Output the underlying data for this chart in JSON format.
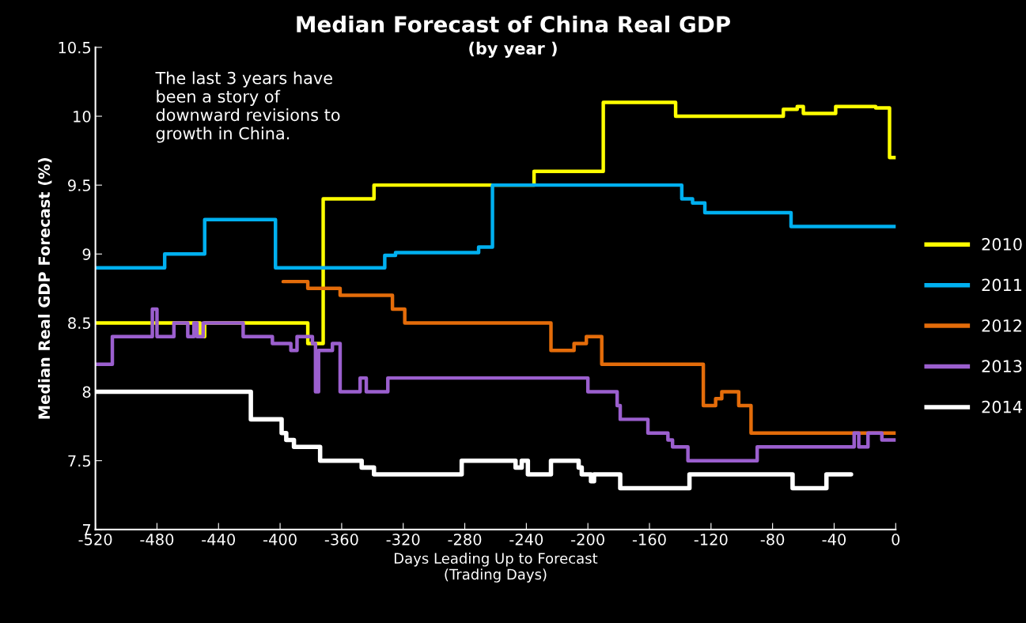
{
  "chart_data": {
    "type": "step",
    "title": "Median Forecast of China Real GDP",
    "subtitle": "(by year )",
    "xlabel": "Days Leading Up to Forecast\n(Trading Days)",
    "ylabel": "Median Real GDP Forecast (%)",
    "annotations": [
      "The last 3 years have\nbeen a story of\ndownward revisions to\ngrowth in China."
    ],
    "xlim": [
      -520,
      0
    ],
    "xticks": [
      -520,
      -480,
      -440,
      -400,
      -360,
      -320,
      -280,
      -240,
      -200,
      -160,
      -120,
      -80,
      -40,
      0
    ],
    "ylim": [
      7,
      10.5
    ],
    "yticks": [
      7,
      7.5,
      8,
      8.5,
      9,
      9.5,
      10,
      10.5
    ],
    "grid": false,
    "legend": "right",
    "series": [
      {
        "name": "2010",
        "color": "#ffff00",
        "x": [
          -520,
          -452,
          -449,
          -382,
          -372,
          -339,
          -235,
          -190,
          -143,
          -73,
          -64,
          -60,
          -39,
          -13,
          -4,
          0
        ],
        "values": [
          8.5,
          8.4,
          8.5,
          8.35,
          9.4,
          9.5,
          9.6,
          10.1,
          10.0,
          10.05,
          10.07,
          10.02,
          10.07,
          10.06,
          9.7,
          9.7
        ]
      },
      {
        "name": "2011",
        "color": "#00b0f0",
        "x": [
          -520,
          -475,
          -449,
          -403,
          -332,
          -325,
          -271,
          -262,
          -139,
          -132,
          -124,
          -68,
          0
        ],
        "values": [
          8.9,
          9.0,
          9.25,
          8.9,
          8.99,
          9.01,
          9.05,
          9.5,
          9.4,
          9.37,
          9.3,
          9.2,
          9.2
        ]
      },
      {
        "name": "2012",
        "color": "#e46c0a",
        "x": [
          -398,
          -382,
          -361,
          -327,
          -319,
          -224,
          -209,
          -201,
          -191,
          -125,
          -117,
          -113,
          -102,
          -94,
          0
        ],
        "values": [
          8.8,
          8.75,
          8.7,
          8.6,
          8.5,
          8.3,
          8.35,
          8.4,
          8.2,
          7.9,
          7.95,
          8.0,
          7.9,
          7.7,
          7.7
        ]
      },
      {
        "name": "2013",
        "color": "#9b5fce",
        "x": [
          -520,
          -509,
          -483,
          -480,
          -469,
          -460,
          -456,
          -454,
          -450,
          -424,
          -405,
          -393,
          -389,
          -379,
          -377,
          -375,
          -366,
          -361,
          -348,
          -344,
          -330,
          -200,
          -181,
          -179,
          -161,
          -148,
          -145,
          -135,
          -90,
          -27,
          -24,
          -18,
          -9,
          0
        ],
        "values": [
          8.2,
          8.4,
          8.6,
          8.4,
          8.5,
          8.4,
          8.5,
          8.4,
          8.5,
          8.4,
          8.35,
          8.3,
          8.4,
          8.35,
          8.0,
          8.3,
          8.35,
          8.0,
          8.1,
          8.0,
          8.1,
          8.0,
          7.9,
          7.8,
          7.7,
          7.65,
          7.6,
          7.5,
          7.6,
          7.7,
          7.6,
          7.7,
          7.65,
          7.65
        ]
      },
      {
        "name": "2014",
        "color": "#ffffff",
        "x": [
          -520,
          -419,
          -399,
          -396,
          -391,
          -374,
          -347,
          -339,
          -282,
          -247,
          -243,
          -239,
          -224,
          -206,
          -204,
          -198,
          -196,
          -179,
          -134,
          -67,
          -45,
          -29
        ],
        "values": [
          8.0,
          7.8,
          7.7,
          7.65,
          7.6,
          7.5,
          7.45,
          7.4,
          7.5,
          7.45,
          7.5,
          7.4,
          7.5,
          7.45,
          7.4,
          7.35,
          7.4,
          7.3,
          7.4,
          7.3,
          7.4,
          7.4
        ]
      }
    ]
  }
}
